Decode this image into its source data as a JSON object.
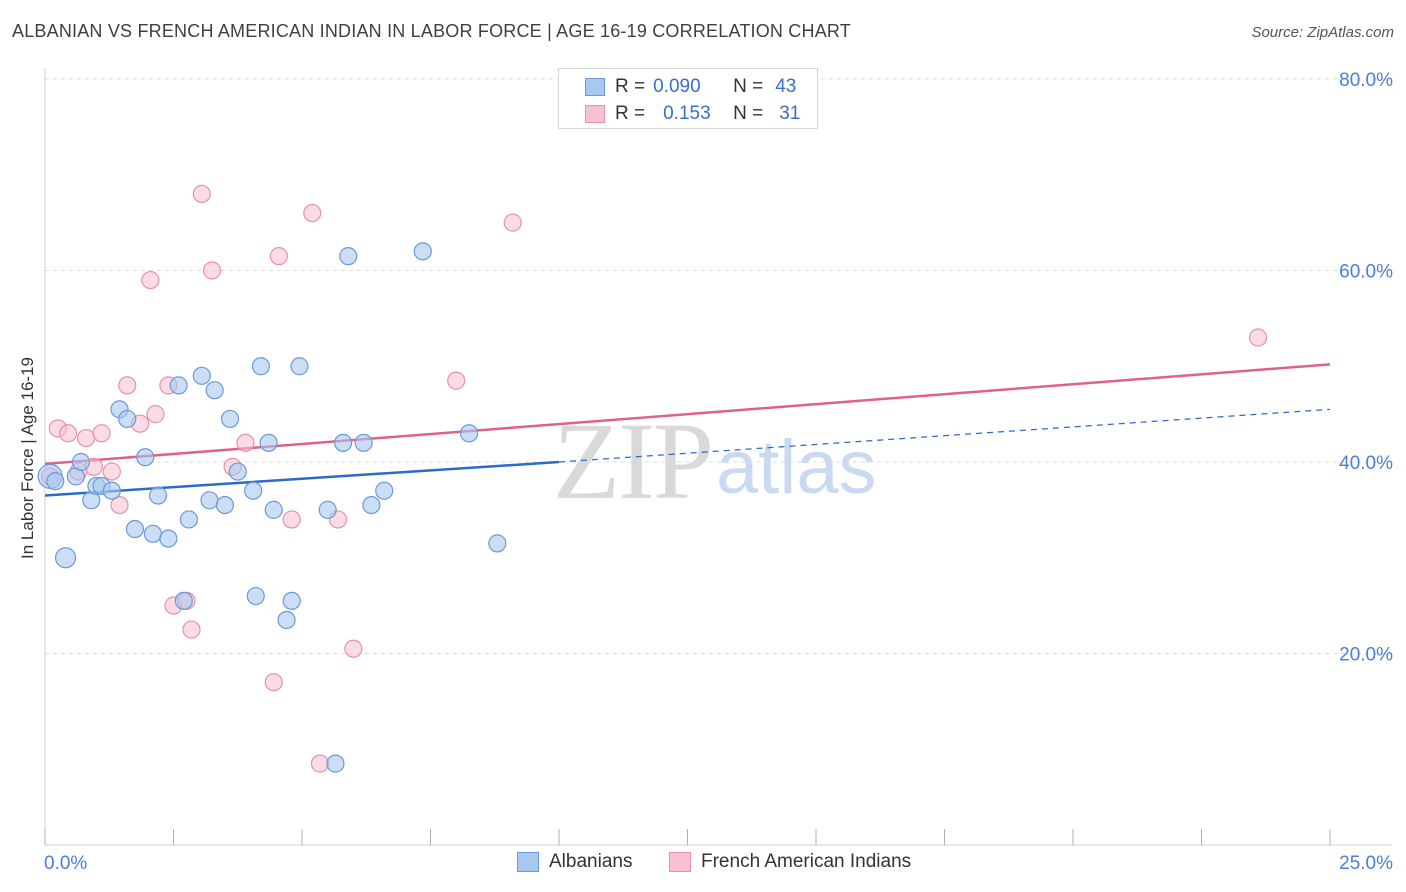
{
  "header": {
    "title": "ALBANIAN VS FRENCH AMERICAN INDIAN IN LABOR FORCE | AGE 16-19 CORRELATION CHART",
    "source": "Source: ZipAtlas.com"
  },
  "watermark": {
    "zip": "ZIP",
    "atlas": "atlas"
  },
  "legend": {
    "rows": [
      {
        "r_label": "R =",
        "r_value": "0.090",
        "n_label": "N =",
        "n_value": "43"
      },
      {
        "r_label": "R =",
        "r_value": "0.153",
        "n_label": "N =",
        "n_value": "31"
      }
    ]
  },
  "colors": {
    "albanians_fill": "#a8c8f0",
    "albanians_stroke": "#6a9ad8",
    "albanians_line": "#2a6cc8",
    "french_fill": "#f8c0d0",
    "french_stroke": "#e890ac",
    "french_line": "#e0608c",
    "tick_text": "#4a7fd4"
  },
  "chart_data": {
    "type": "scatter",
    "title": "ALBANIAN VS FRENCH AMERICAN INDIAN IN LABOR FORCE | AGE 16-19 CORRELATION CHART",
    "xlabel": "",
    "ylabel": "In Labor Force | Age 16-19",
    "xlim": [
      0,
      25
    ],
    "ylim": [
      0,
      80
    ],
    "x_tick_labels": [
      "0.0%",
      "25.0%"
    ],
    "y_ticks": [
      20,
      40,
      60,
      80
    ],
    "y_tick_labels": [
      "20.0%",
      "40.0%",
      "60.0%",
      "80.0%"
    ],
    "grid": true,
    "legend_position": "top-center",
    "series": [
      {
        "name": "Albanians",
        "points": [
          [
            0.1,
            38.5
          ],
          [
            0.2,
            38.0
          ],
          [
            0.4,
            30.0
          ],
          [
            0.6,
            38.5
          ],
          [
            0.7,
            40.0
          ],
          [
            0.9,
            36.0
          ],
          [
            1.0,
            37.5
          ],
          [
            1.1,
            37.5
          ],
          [
            1.3,
            37.0
          ],
          [
            1.45,
            45.5
          ],
          [
            1.6,
            44.5
          ],
          [
            1.75,
            33.0
          ],
          [
            1.95,
            40.5
          ],
          [
            2.1,
            32.5
          ],
          [
            2.2,
            36.5
          ],
          [
            2.4,
            32.0
          ],
          [
            2.6,
            48.0
          ],
          [
            2.7,
            25.5
          ],
          [
            2.8,
            34.0
          ],
          [
            3.05,
            49.0
          ],
          [
            3.2,
            36.0
          ],
          [
            3.3,
            47.5
          ],
          [
            3.5,
            35.5
          ],
          [
            3.6,
            44.5
          ],
          [
            3.75,
            39.0
          ],
          [
            4.05,
            37.0
          ],
          [
            4.1,
            26.0
          ],
          [
            4.2,
            50.0
          ],
          [
            4.35,
            42.0
          ],
          [
            4.45,
            35.0
          ],
          [
            4.7,
            23.5
          ],
          [
            4.8,
            25.5
          ],
          [
            4.95,
            50.0
          ],
          [
            5.5,
            35.0
          ],
          [
            5.65,
            8.5
          ],
          [
            5.8,
            42.0
          ],
          [
            5.9,
            61.5
          ],
          [
            6.2,
            42.0
          ],
          [
            6.35,
            35.5
          ],
          [
            6.6,
            37.0
          ],
          [
            7.35,
            62.0
          ],
          [
            8.25,
            43.0
          ],
          [
            8.8,
            31.5
          ]
        ]
      },
      {
        "name": "French American Indians",
        "points": [
          [
            0.1,
            38.5
          ],
          [
            0.25,
            43.5
          ],
          [
            0.45,
            43.0
          ],
          [
            0.65,
            39.0
          ],
          [
            0.8,
            42.5
          ],
          [
            0.95,
            39.5
          ],
          [
            1.1,
            43.0
          ],
          [
            1.3,
            39.0
          ],
          [
            1.45,
            35.5
          ],
          [
            1.6,
            48.0
          ],
          [
            1.85,
            44.0
          ],
          [
            2.05,
            59.0
          ],
          [
            2.15,
            45.0
          ],
          [
            2.4,
            48.0
          ],
          [
            2.5,
            25.0
          ],
          [
            2.75,
            25.5
          ],
          [
            2.85,
            22.5
          ],
          [
            3.05,
            68.0
          ],
          [
            3.25,
            60.0
          ],
          [
            3.65,
            39.5
          ],
          [
            3.9,
            42.0
          ],
          [
            4.45,
            17.0
          ],
          [
            4.55,
            61.5
          ],
          [
            4.8,
            34.0
          ],
          [
            5.2,
            66.0
          ],
          [
            5.35,
            8.5
          ],
          [
            5.7,
            34.0
          ],
          [
            6.0,
            20.5
          ],
          [
            8.0,
            48.5
          ],
          [
            9.1,
            65.0
          ],
          [
            23.6,
            53.0
          ]
        ]
      }
    ],
    "trend_lines": [
      {
        "series": "Albanians",
        "solid_from": [
          0,
          36.5
        ],
        "solid_to": [
          10,
          40.0
        ],
        "dashed_to": [
          25,
          45.5
        ]
      },
      {
        "series": "French American Indians",
        "from": [
          0,
          39.8
        ],
        "to": [
          25,
          50.2
        ]
      }
    ]
  }
}
